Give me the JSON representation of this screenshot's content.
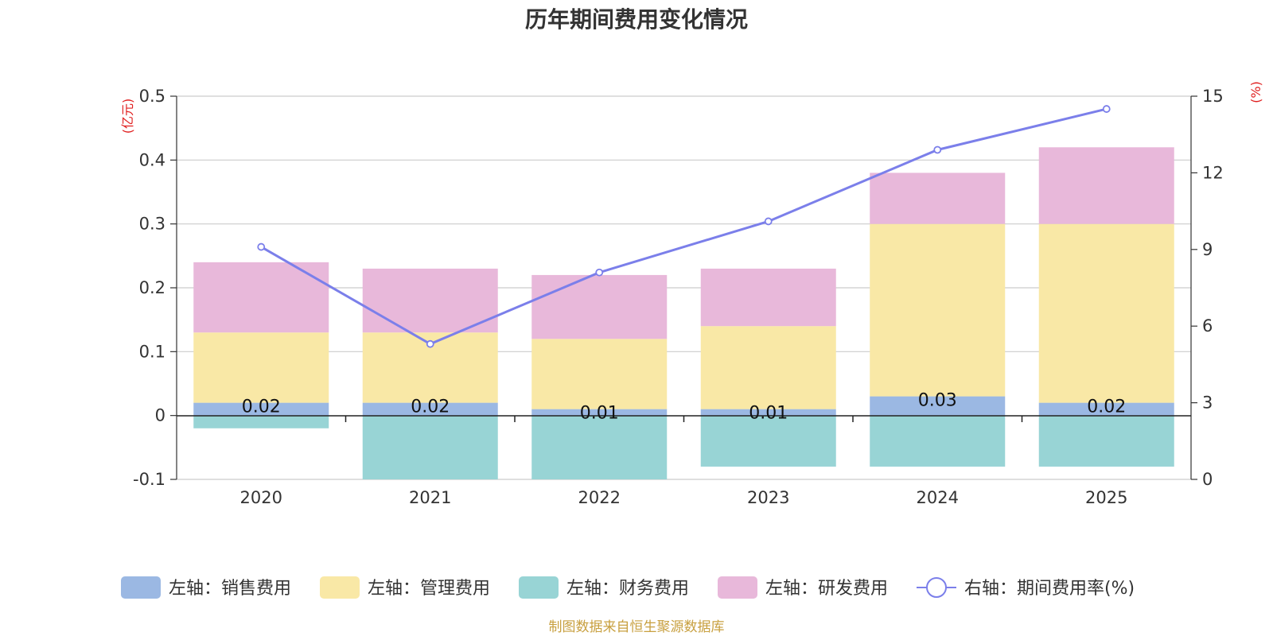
{
  "chart_data": {
    "type": "bar",
    "title": "历年期间费用变化情况",
    "categories": [
      "2020",
      "2021",
      "2022",
      "2023",
      "2024",
      "2025"
    ],
    "left_axis": {
      "unit": "(亿元)",
      "ylim": [
        -0.1,
        0.5
      ],
      "ticks": [
        "-0.1",
        "0",
        "0.1",
        "0.2",
        "0.3",
        "0.4",
        "0.5"
      ],
      "tick_values": [
        -0.1,
        0,
        0.1,
        0.2,
        0.3,
        0.4,
        0.5
      ]
    },
    "right_axis": {
      "unit": "(%)",
      "ylim": [
        0,
        15
      ],
      "ticks": [
        "0",
        "3",
        "6",
        "9",
        "12",
        "15"
      ],
      "tick_values": [
        0,
        3,
        6,
        9,
        12,
        15
      ]
    },
    "series": [
      {
        "name": "左轴：销售费用",
        "kind": "bar",
        "color": "#9bb8e3",
        "values": [
          0.02,
          0.02,
          0.01,
          0.01,
          0.03,
          0.02
        ],
        "labels": [
          "0.02",
          "0.02",
          "0.01",
          "0.01",
          "0.03",
          "0.02"
        ]
      },
      {
        "name": "左轴：管理费用",
        "kind": "bar",
        "color": "#f9e8a6",
        "values": [
          0.11,
          0.11,
          0.11,
          0.13,
          0.27,
          0.28
        ]
      },
      {
        "name": "左轴：财务费用",
        "kind": "bar",
        "color": "#98d4d5",
        "values": [
          -0.02,
          -0.1,
          -0.1,
          -0.08,
          -0.08,
          -0.08
        ]
      },
      {
        "name": "左轴：研发费用",
        "kind": "bar",
        "color": "#e8b8da",
        "values": [
          0.11,
          0.1,
          0.1,
          0.09,
          0.08,
          0.12
        ]
      },
      {
        "name": "右轴：期间费用率(%)",
        "kind": "line",
        "axis": "right",
        "color": "#7b7fea",
        "values": [
          9.1,
          5.3,
          8.1,
          10.1,
          12.9,
          14.5
        ]
      }
    ]
  },
  "source": "制图数据来自恒生聚源数据库"
}
